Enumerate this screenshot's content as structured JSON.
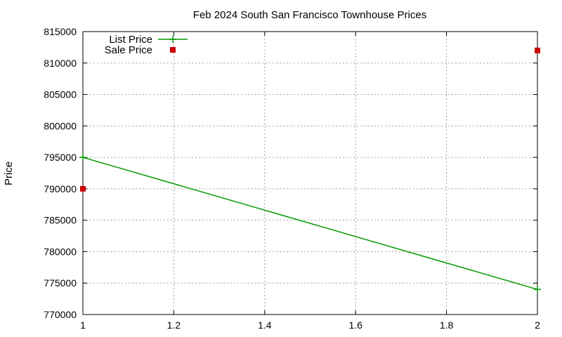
{
  "chart_data": {
    "type": "line",
    "title": "Feb 2024 South San Francisco Townhouse Prices",
    "xlabel": "",
    "ylabel": "Price",
    "xlim": [
      1,
      2
    ],
    "ylim": [
      770000,
      815000
    ],
    "xticks": [
      1,
      1.2,
      1.4,
      1.6,
      1.8,
      2
    ],
    "xtick_labels": [
      "1",
      "1.2",
      "1.4",
      "1.6",
      "1.8",
      "2"
    ],
    "yticks": [
      770000,
      775000,
      780000,
      785000,
      790000,
      795000,
      800000,
      805000,
      810000,
      815000
    ],
    "ytick_labels": [
      "770000",
      "775000",
      "780000",
      "785000",
      "790000",
      "795000",
      "800000",
      "805000",
      "810000",
      "815000"
    ],
    "grid": true,
    "legend_position": "top-left",
    "series": [
      {
        "name": "List Price",
        "style": "line",
        "color": "#009900",
        "x": [
          1,
          2
        ],
        "y": [
          795000,
          774000
        ]
      },
      {
        "name": "Sale Price",
        "style": "points",
        "color": "#cc0000",
        "x": [
          1,
          2
        ],
        "y": [
          790000,
          812000
        ]
      }
    ]
  }
}
